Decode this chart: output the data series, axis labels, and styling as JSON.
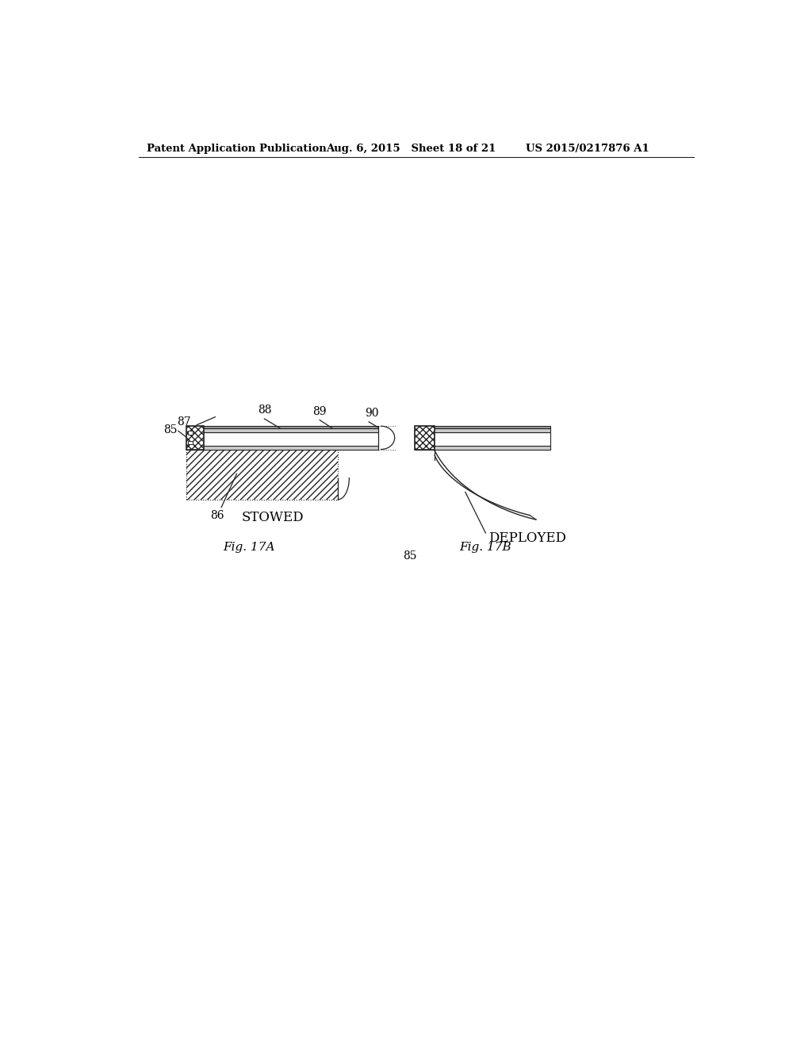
{
  "bg_color": "#ffffff",
  "header_left": "Patent Application Publication",
  "header_mid": "Aug. 6, 2015   Sheet 18 of 21",
  "header_right": "US 2015/0217876 A1",
  "fig_a_label": "Fig. 17A",
  "fig_b_label": "Fig. 17B",
  "stowed_label": "STOWED",
  "deployed_label": "DEPLOYED",
  "line_color": "#222222",
  "text_color": "#000000",
  "gray_light": "#cccccc",
  "gray_mid": "#999999",
  "gray_dark": "#555555",
  "white": "#ffffff"
}
